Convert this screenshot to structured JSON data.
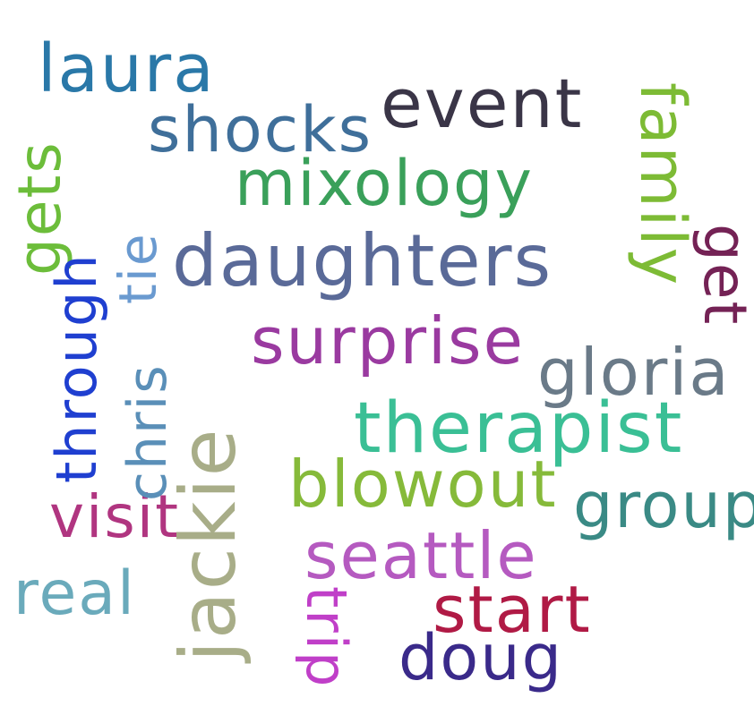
{
  "words": [
    {
      "name": "word-laura",
      "text": "laura",
      "color": "#2a78a8"
    },
    {
      "name": "word-shocks",
      "text": "shocks",
      "color": "#3f6f9a"
    },
    {
      "name": "word-event",
      "text": "event",
      "color": "#3a3547"
    },
    {
      "name": "word-mixology",
      "text": "mixology",
      "color": "#3aa05a"
    },
    {
      "name": "word-daughters",
      "text": "daughters",
      "color": "#5a6a98"
    },
    {
      "name": "word-family",
      "text": "family",
      "color": "#7dbb35"
    },
    {
      "name": "word-get-left",
      "text": "gets",
      "color": "#6cbd3a"
    },
    {
      "name": "word-get-right",
      "text": "get",
      "color": "#742255"
    },
    {
      "name": "word-tie",
      "text": "tie",
      "color": "#6a9ad0"
    },
    {
      "name": "word-through",
      "text": "through",
      "color": "#1f3fd0"
    },
    {
      "name": "word-chris",
      "text": "chris",
      "color": "#5a8fb8"
    },
    {
      "name": "word-jackie",
      "text": "jackie",
      "color": "#a8ad88"
    },
    {
      "name": "word-surprise",
      "text": "surprise",
      "color": "#9a3aa0"
    },
    {
      "name": "word-gloria",
      "text": "gloria",
      "color": "#6a7a88"
    },
    {
      "name": "word-therapist",
      "text": "therapist",
      "color": "#3abf95"
    },
    {
      "name": "word-blowout",
      "text": "blowout",
      "color": "#86ba3a"
    },
    {
      "name": "word-group",
      "text": "group",
      "color": "#3a8a85"
    },
    {
      "name": "word-visit",
      "text": "visit",
      "color": "#b03580"
    },
    {
      "name": "word-seattle",
      "text": "seattle",
      "color": "#b55ac0"
    },
    {
      "name": "word-real",
      "text": "real",
      "color": "#6aaabb"
    },
    {
      "name": "word-start",
      "text": "start",
      "color": "#b01a45"
    },
    {
      "name": "word-trip",
      "text": "trip",
      "color": "#c03fc8"
    },
    {
      "name": "word-doug",
      "text": "doug",
      "color": "#3a2a8a"
    }
  ]
}
